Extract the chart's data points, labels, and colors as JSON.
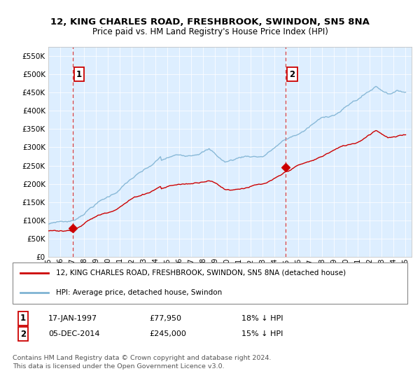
{
  "title": "12, KING CHARLES ROAD, FRESHBROOK, SWINDON, SN5 8NA",
  "subtitle": "Price paid vs. HM Land Registry's House Price Index (HPI)",
  "ylim": [
    0,
    575000
  ],
  "yticks": [
    0,
    50000,
    100000,
    150000,
    200000,
    250000,
    300000,
    350000,
    400000,
    450000,
    500000,
    550000
  ],
  "ytick_labels": [
    "£0",
    "£50K",
    "£100K",
    "£150K",
    "£200K",
    "£250K",
    "£300K",
    "£350K",
    "£400K",
    "£450K",
    "£500K",
    "£550K"
  ],
  "xlim_start": 1995.0,
  "xlim_end": 2025.5,
  "plot_bg_color": "#ddeeff",
  "sale1_x": 1997.04,
  "sale1_y": 77950,
  "sale2_x": 2014.92,
  "sale2_y": 245000,
  "legend_line1": "12, KING CHARLES ROAD, FRESHBROOK, SWINDON, SN5 8NA (detached house)",
  "legend_line2": "HPI: Average price, detached house, Swindon",
  "annotation1_date": "17-JAN-1997",
  "annotation1_price": "£77,950",
  "annotation1_hpi": "18% ↓ HPI",
  "annotation2_date": "05-DEC-2014",
  "annotation2_price": "£245,000",
  "annotation2_hpi": "15% ↓ HPI",
  "footer": "Contains HM Land Registry data © Crown copyright and database right 2024.\nThis data is licensed under the Open Government Licence v3.0.",
  "red_color": "#cc0000",
  "blue_color": "#7fb3d3"
}
